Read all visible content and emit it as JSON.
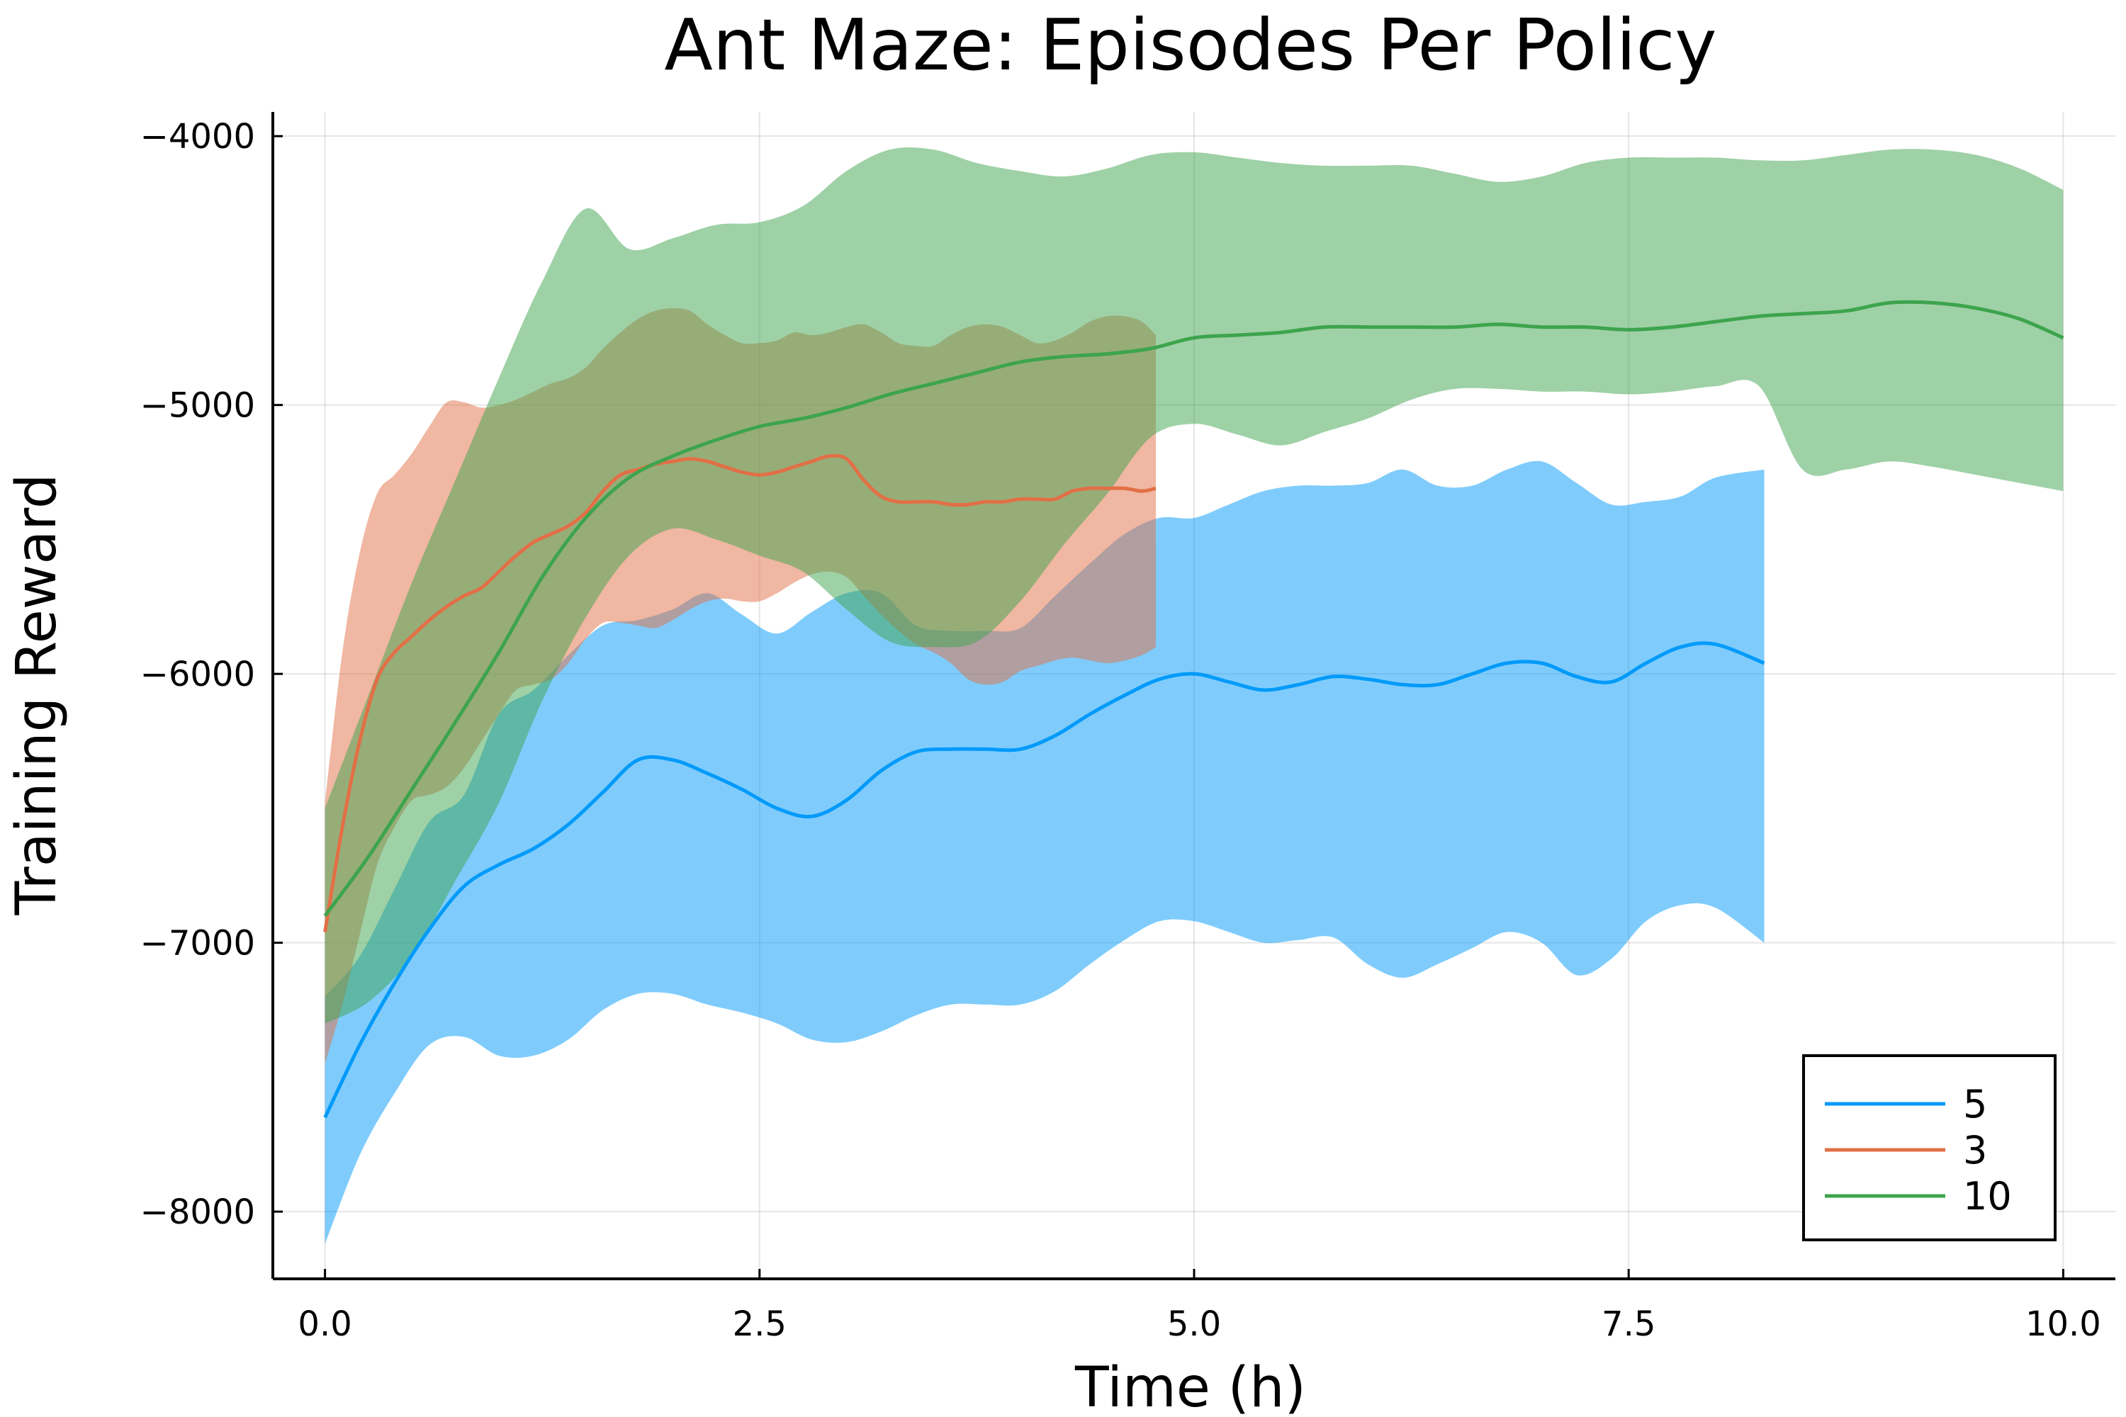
{
  "chart_data": {
    "type": "line",
    "title": "Ant Maze: Episodes Per Policy",
    "xlabel": "Time (h)",
    "ylabel": "Training Reward",
    "xlim": [
      -0.3,
      10.3
    ],
    "ylim": [
      -8250,
      -3910
    ],
    "xticks": [
      0,
      2.5,
      5,
      7.5,
      10
    ],
    "xtick_labels": [
      "0.0",
      "2.5",
      "5.0",
      "7.5",
      "10.0"
    ],
    "yticks": [
      -8000,
      -7000,
      -6000,
      -5000,
      -4000
    ],
    "ytick_labels": [
      "−8000",
      "−7000",
      "−6000",
      "−5000",
      "−4000"
    ],
    "grid": true,
    "legend_position": "bottom-right",
    "series": [
      {
        "name": "5",
        "color": "#009af9",
        "band_opacity": 0.5,
        "x": [
          0,
          0.2,
          0.4,
          0.6,
          0.8,
          1.0,
          1.2,
          1.4,
          1.6,
          1.8,
          2.0,
          2.2,
          2.4,
          2.6,
          2.8,
          3.0,
          3.2,
          3.4,
          3.6,
          3.8,
          4.0,
          4.2,
          4.4,
          4.6,
          4.8,
          5.0,
          5.2,
          5.4,
          5.6,
          5.8,
          6.0,
          6.2,
          6.4,
          6.6,
          6.8,
          7.0,
          7.2,
          7.4,
          7.6,
          7.8,
          8.0,
          8.28
        ],
        "y": [
          -7650,
          -7380,
          -7150,
          -6950,
          -6790,
          -6710,
          -6650,
          -6560,
          -6440,
          -6320,
          -6320,
          -6370,
          -6430,
          -6500,
          -6530,
          -6470,
          -6360,
          -6290,
          -6280,
          -6280,
          -6280,
          -6230,
          -6150,
          -6080,
          -6020,
          -6000,
          -6030,
          -6060,
          -6040,
          -6010,
          -6020,
          -6040,
          -6040,
          -6000,
          -5960,
          -5960,
          -6010,
          -6030,
          -5960,
          -5900,
          -5890,
          -5960
        ],
        "upper": [
          -7200,
          -7050,
          -6800,
          -6550,
          -6450,
          -6150,
          -6060,
          -5930,
          -5820,
          -5800,
          -5760,
          -5700,
          -5780,
          -5850,
          -5770,
          -5700,
          -5700,
          -5820,
          -5840,
          -5840,
          -5830,
          -5710,
          -5590,
          -5480,
          -5420,
          -5420,
          -5370,
          -5320,
          -5300,
          -5300,
          -5290,
          -5240,
          -5300,
          -5300,
          -5240,
          -5210,
          -5290,
          -5370,
          -5360,
          -5340,
          -5270,
          -5240
        ],
        "lower": [
          -8120,
          -7790,
          -7560,
          -7380,
          -7350,
          -7420,
          -7420,
          -7360,
          -7250,
          -7190,
          -7190,
          -7230,
          -7260,
          -7300,
          -7360,
          -7370,
          -7330,
          -7270,
          -7230,
          -7230,
          -7230,
          -7180,
          -7080,
          -6990,
          -6920,
          -6920,
          -6960,
          -7000,
          -6990,
          -6980,
          -7080,
          -7130,
          -7080,
          -7020,
          -6960,
          -7000,
          -7120,
          -7060,
          -6920,
          -6860,
          -6870,
          -7000
        ]
      },
      {
        "name": "3",
        "color": "#e26f46",
        "band_opacity": 0.5,
        "x": [
          0,
          0.1,
          0.2,
          0.3,
          0.4,
          0.5,
          0.6,
          0.7,
          0.8,
          0.9,
          1.0,
          1.1,
          1.2,
          1.3,
          1.4,
          1.5,
          1.6,
          1.7,
          1.8,
          1.9,
          2.0,
          2.1,
          2.2,
          2.3,
          2.4,
          2.5,
          2.6,
          2.7,
          2.8,
          2.9,
          3.0,
          3.1,
          3.2,
          3.3,
          3.4,
          3.5,
          3.6,
          3.7,
          3.8,
          3.9,
          4.0,
          4.1,
          4.2,
          4.3,
          4.4,
          4.5,
          4.6,
          4.7,
          4.78
        ],
        "y": [
          -6960,
          -6570,
          -6250,
          -6020,
          -5920,
          -5860,
          -5800,
          -5750,
          -5710,
          -5680,
          -5620,
          -5560,
          -5510,
          -5480,
          -5450,
          -5400,
          -5320,
          -5260,
          -5240,
          -5220,
          -5210,
          -5200,
          -5210,
          -5230,
          -5250,
          -5260,
          -5250,
          -5230,
          -5210,
          -5190,
          -5200,
          -5280,
          -5340,
          -5360,
          -5360,
          -5360,
          -5370,
          -5370,
          -5360,
          -5360,
          -5350,
          -5350,
          -5350,
          -5320,
          -5310,
          -5310,
          -5310,
          -5320,
          -5310
        ],
        "upper": [
          -6480,
          -5920,
          -5550,
          -5330,
          -5260,
          -5180,
          -5080,
          -4990,
          -4990,
          -5010,
          -5000,
          -4980,
          -4950,
          -4920,
          -4900,
          -4860,
          -4790,
          -4730,
          -4680,
          -4650,
          -4640,
          -4650,
          -4700,
          -4740,
          -4770,
          -4770,
          -4760,
          -4730,
          -4740,
          -4730,
          -4710,
          -4700,
          -4730,
          -4770,
          -4780,
          -4780,
          -4740,
          -4710,
          -4700,
          -4710,
          -4740,
          -4770,
          -4760,
          -4730,
          -4690,
          -4670,
          -4670,
          -4690,
          -4740
        ],
        "lower": [
          -7450,
          -7230,
          -6970,
          -6710,
          -6570,
          -6470,
          -6450,
          -6420,
          -6350,
          -6250,
          -6150,
          -6060,
          -6040,
          -6020,
          -5960,
          -5870,
          -5810,
          -5810,
          -5820,
          -5830,
          -5800,
          -5760,
          -5730,
          -5720,
          -5730,
          -5730,
          -5700,
          -5660,
          -5630,
          -5620,
          -5640,
          -5710,
          -5780,
          -5840,
          -5890,
          -5920,
          -5960,
          -6020,
          -6040,
          -6030,
          -5990,
          -5970,
          -5950,
          -5940,
          -5950,
          -5960,
          -5950,
          -5930,
          -5900
        ]
      },
      {
        "name": "10",
        "color": "#3da44d",
        "band_opacity": 0.5,
        "x": [
          0,
          0.25,
          0.5,
          0.75,
          1.0,
          1.25,
          1.5,
          1.75,
          2.0,
          2.25,
          2.5,
          2.75,
          3.0,
          3.25,
          3.5,
          3.75,
          4.0,
          4.25,
          4.5,
          4.75,
          5.0,
          5.25,
          5.5,
          5.75,
          6.0,
          6.25,
          6.5,
          6.75,
          7.0,
          7.25,
          7.5,
          7.75,
          8.0,
          8.25,
          8.5,
          8.75,
          9.0,
          9.25,
          9.5,
          9.75,
          10.0
        ],
        "y": [
          -6900,
          -6680,
          -6430,
          -6180,
          -5920,
          -5640,
          -5420,
          -5270,
          -5190,
          -5130,
          -5080,
          -5050,
          -5010,
          -4960,
          -4920,
          -4880,
          -4840,
          -4820,
          -4810,
          -4790,
          -4750,
          -4740,
          -4730,
          -4710,
          -4710,
          -4710,
          -4710,
          -4700,
          -4710,
          -4710,
          -4720,
          -4710,
          -4690,
          -4670,
          -4660,
          -4650,
          -4620,
          -4620,
          -4640,
          -4680,
          -4750
        ],
        "upper": [
          -6500,
          -6080,
          -5660,
          -5280,
          -4900,
          -4540,
          -4270,
          -4420,
          -4380,
          -4330,
          -4320,
          -4260,
          -4130,
          -4050,
          -4050,
          -4100,
          -4130,
          -4150,
          -4120,
          -4070,
          -4060,
          -4080,
          -4100,
          -4110,
          -4110,
          -4110,
          -4140,
          -4170,
          -4150,
          -4100,
          -4080,
          -4080,
          -4080,
          -4090,
          -4090,
          -4070,
          -4050,
          -4050,
          -4070,
          -4120,
          -4200
        ],
        "lower": [
          -7300,
          -7220,
          -7050,
          -6770,
          -6480,
          -6100,
          -5790,
          -5560,
          -5460,
          -5500,
          -5560,
          -5620,
          -5760,
          -5880,
          -5900,
          -5880,
          -5730,
          -5520,
          -5330,
          -5120,
          -5070,
          -5110,
          -5150,
          -5100,
          -5050,
          -4980,
          -4940,
          -4940,
          -4950,
          -4950,
          -4960,
          -4950,
          -4930,
          -4930,
          -5240,
          -5240,
          -5210,
          -5230,
          -5260,
          -5290,
          -5320
        ]
      }
    ]
  }
}
